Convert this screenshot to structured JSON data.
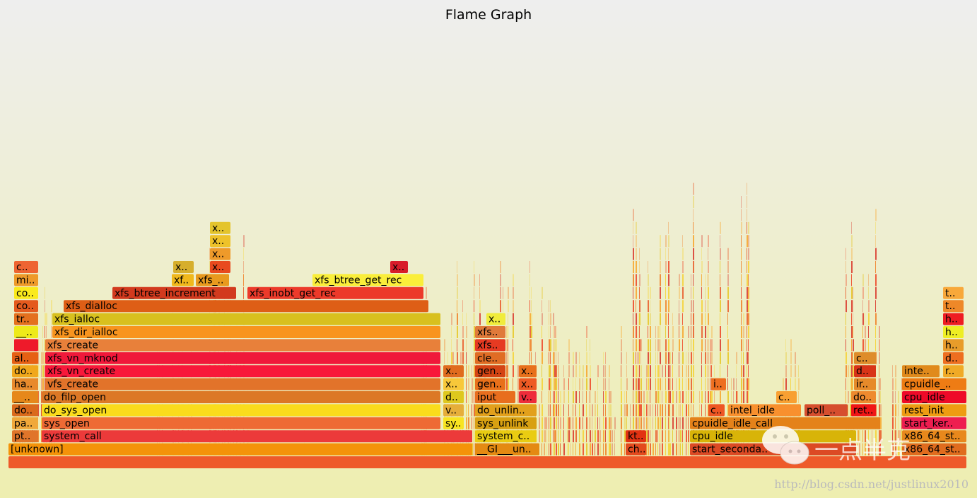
{
  "chart_data": {
    "type": "flamegraph",
    "title": "Flame Graph",
    "total_samples": 1356,
    "frames": [
      {
        "name": "",
        "depth": 0,
        "start": 0,
        "width": 1356,
        "color": "#ee5a2a"
      },
      {
        "name": "[unknown]",
        "depth": 1,
        "start": 0,
        "width": 657,
        "color": "#f49309"
      },
      {
        "name": "__GI___un..",
        "depth": 1,
        "start": 660,
        "width": 92,
        "color": "#e48a12"
      },
      {
        "name": "ch..",
        "depth": 1,
        "start": 873,
        "width": 30,
        "color": "#e34a1e"
      },
      {
        "name": "start_seconda..",
        "depth": 1,
        "start": 964,
        "width": 236,
        "color": "#dc4a24"
      },
      {
        "name": "x86_64_st..",
        "depth": 1,
        "start": 1264,
        "width": 92,
        "color": "#e06c1e"
      },
      {
        "name": "pt..",
        "depth": 2,
        "start": 5,
        "width": 38,
        "color": "#e0752a"
      },
      {
        "name": "system_call",
        "depth": 2,
        "start": 47,
        "width": 610,
        "color": "#ec3a3a"
      },
      {
        "name": "system_c..",
        "depth": 2,
        "start": 660,
        "width": 88,
        "color": "#e9cc12"
      },
      {
        "name": "kt..",
        "depth": 2,
        "start": 873,
        "width": 30,
        "color": "#e23212"
      },
      {
        "name": "cpu_idle",
        "depth": 2,
        "start": 964,
        "width": 236,
        "color": "#d8b408"
      },
      {
        "name": "x86_64_st..",
        "depth": 2,
        "start": 1264,
        "width": 92,
        "color": "#e8881c"
      },
      {
        "name": "pa..",
        "depth": 3,
        "start": 5,
        "width": 38,
        "color": "#f0a83a"
      },
      {
        "name": "sys_open",
        "depth": 3,
        "start": 47,
        "width": 565,
        "color": "#ee6a34"
      },
      {
        "name": "sy..",
        "depth": 3,
        "start": 615,
        "width": 30,
        "color": "#f8e420"
      },
      {
        "name": "sys_unlink",
        "depth": 3,
        "start": 660,
        "width": 88,
        "color": "#d8a012"
      },
      {
        "name": "cpuidle_idle_call",
        "depth": 3,
        "start": 964,
        "width": 270,
        "color": "#e4821a"
      },
      {
        "name": "start_ker..",
        "depth": 3,
        "start": 1264,
        "width": 92,
        "color": "#ee1e50"
      },
      {
        "name": "do..",
        "depth": 4,
        "start": 5,
        "width": 38,
        "color": "#da6a1c"
      },
      {
        "name": "do_sys_open",
        "depth": 4,
        "start": 47,
        "width": 565,
        "color": "#fadc1c"
      },
      {
        "name": "v..",
        "depth": 4,
        "start": 615,
        "width": 30,
        "color": "#e6ae3a"
      },
      {
        "name": "do_unlin..",
        "depth": 4,
        "start": 660,
        "width": 88,
        "color": "#e2a01c"
      },
      {
        "name": "c..",
        "depth": 4,
        "start": 990,
        "width": 24,
        "color": "#ee5624"
      },
      {
        "name": "intel_idle",
        "depth": 4,
        "start": 1018,
        "width": 104,
        "color": "#f8902e"
      },
      {
        "name": "poll_..",
        "depth": 4,
        "start": 1126,
        "width": 62,
        "color": "#d64e2e"
      },
      {
        "name": "ret..",
        "depth": 4,
        "start": 1192,
        "width": 36,
        "color": "#f01616"
      },
      {
        "name": "rest_init",
        "depth": 4,
        "start": 1264,
        "width": 92,
        "color": "#ee9c12"
      },
      {
        "name": "__..",
        "depth": 5,
        "start": 5,
        "width": 38,
        "color": "#e6881a"
      },
      {
        "name": "do_filp_open",
        "depth": 5,
        "start": 47,
        "width": 565,
        "color": "#dc7826"
      },
      {
        "name": "d..",
        "depth": 5,
        "start": 615,
        "width": 30,
        "color": "#dec81e"
      },
      {
        "name": "iput",
        "depth": 5,
        "start": 660,
        "width": 58,
        "color": "#e86e1e"
      },
      {
        "name": "v..",
        "depth": 5,
        "start": 722,
        "width": 26,
        "color": "#ee2c3a"
      },
      {
        "name": "c..",
        "depth": 5,
        "start": 1086,
        "width": 30,
        "color": "#f8a032"
      },
      {
        "name": "do..",
        "depth": 5,
        "start": 1192,
        "width": 36,
        "color": "#ee8a2e"
      },
      {
        "name": "cpu_idle",
        "depth": 5,
        "start": 1264,
        "width": 92,
        "color": "#ee0a28"
      },
      {
        "name": "ha..",
        "depth": 6,
        "start": 5,
        "width": 38,
        "color": "#e88a2c"
      },
      {
        "name": "vfs_create",
        "depth": 6,
        "start": 52,
        "width": 560,
        "color": "#e2732a"
      },
      {
        "name": "x..",
        "depth": 6,
        "start": 615,
        "width": 30,
        "color": "#f8c83a"
      },
      {
        "name": "gen..",
        "depth": 6,
        "start": 660,
        "width": 44,
        "color": "#e8701a"
      },
      {
        "name": "x..",
        "depth": 6,
        "start": 722,
        "width": 26,
        "color": "#ee5a24"
      },
      {
        "name": "i..",
        "depth": 6,
        "start": 994,
        "width": 22,
        "color": "#ee6e20"
      },
      {
        "name": "ir..",
        "depth": 6,
        "start": 1196,
        "width": 32,
        "color": "#e68a2a"
      },
      {
        "name": "cpuidle_..",
        "depth": 6,
        "start": 1264,
        "width": 92,
        "color": "#ee7c14"
      },
      {
        "name": "do..",
        "depth": 7,
        "start": 5,
        "width": 38,
        "color": "#f0a81c"
      },
      {
        "name": "xfs_vn_create",
        "depth": 7,
        "start": 52,
        "width": 560,
        "color": "#f8183a"
      },
      {
        "name": "x..",
        "depth": 7,
        "start": 615,
        "width": 30,
        "color": "#e06c1e"
      },
      {
        "name": "gen..",
        "depth": 7,
        "start": 660,
        "width": 44,
        "color": "#d44414"
      },
      {
        "name": "x..",
        "depth": 7,
        "start": 722,
        "width": 26,
        "color": "#e8701c"
      },
      {
        "name": "d..",
        "depth": 7,
        "start": 1196,
        "width": 32,
        "color": "#d83418"
      },
      {
        "name": "inte..",
        "depth": 7,
        "start": 1264,
        "width": 54,
        "color": "#e08a1c"
      },
      {
        "name": "r..",
        "depth": 7,
        "start": 1322,
        "width": 30,
        "color": "#f0aa26"
      },
      {
        "name": "al..",
        "depth": 8,
        "start": 5,
        "width": 38,
        "color": "#e66014"
      },
      {
        "name": "xfs_vn_mknod",
        "depth": 8,
        "start": 52,
        "width": 560,
        "color": "#f0183a"
      },
      {
        "name": "cle..",
        "depth": 8,
        "start": 660,
        "width": 44,
        "color": "#e06c24"
      },
      {
        "name": "c..",
        "depth": 8,
        "start": 1196,
        "width": 32,
        "color": "#de8c2a"
      },
      {
        "name": "d..",
        "depth": 8,
        "start": 1322,
        "width": 30,
        "color": "#ee6e20"
      },
      {
        "name": "xfs_create",
        "depth": 9,
        "start": 52,
        "width": 560,
        "color": "#e8803a"
      },
      {
        "name": "xfs..",
        "depth": 9,
        "start": 660,
        "width": 44,
        "color": "#e63a22"
      },
      {
        "name": "h..",
        "depth": 9,
        "start": 1322,
        "width": 30,
        "color": "#e89c2a"
      },
      {
        "name": "xfs_dir_ialloc",
        "depth": 10,
        "start": 62,
        "width": 550,
        "color": "#f8941e"
      },
      {
        "name": "xfs..",
        "depth": 10,
        "start": 660,
        "width": 44,
        "color": "#e07a3a"
      },
      {
        "name": "h..",
        "depth": 10,
        "start": 1322,
        "width": 30,
        "color": "#eeee24"
      },
      {
        "name": "xfs_ialloc",
        "depth": 11,
        "start": 62,
        "width": 550,
        "color": "#d8c01e"
      },
      {
        "name": "x..",
        "depth": 11,
        "start": 676,
        "width": 28,
        "color": "#f0ec3a"
      },
      {
        "name": "h..",
        "depth": 11,
        "start": 1322,
        "width": 30,
        "color": "#ee1c22"
      },
      {
        "name": "xfs_dialloc",
        "depth": 12,
        "start": 78,
        "width": 517,
        "color": "#de5e16"
      },
      {
        "name": "t..",
        "depth": 12,
        "start": 1322,
        "width": 30,
        "color": "#ee8828"
      },
      {
        "name": "xfs_btree_increment",
        "depth": 13,
        "start": 147,
        "width": 176,
        "color": "#d23a1e"
      },
      {
        "name": "xfs_inobt_get_rec",
        "depth": 13,
        "start": 338,
        "width": 250,
        "color": "#ec3a2a"
      },
      {
        "name": "t..",
        "depth": 13,
        "start": 1322,
        "width": 30,
        "color": "#f8a83a"
      },
      {
        "name": "xfs_btree_get_rec",
        "depth": 14,
        "start": 430,
        "width": 158,
        "color": "#faee3a"
      },
      {
        "name": "xf..",
        "depth": 14,
        "start": 231,
        "width": 32,
        "color": "#f0b81c"
      },
      {
        "name": "xfs_..",
        "depth": 14,
        "start": 265,
        "width": 48,
        "color": "#e89a1e"
      },
      {
        "name": "x..",
        "depth": 15,
        "start": 233,
        "width": 30,
        "color": "#d6ae2c"
      },
      {
        "name": "x..",
        "depth": 15,
        "start": 285,
        "width": 30,
        "color": "#e84a1e"
      },
      {
        "name": "x..",
        "depth": 15,
        "start": 540,
        "width": 26,
        "color": "#d81c2a"
      },
      {
        "name": "x..",
        "depth": 16,
        "start": 285,
        "width": 30,
        "color": "#ee9a2a"
      },
      {
        "name": "x..",
        "depth": 17,
        "start": 285,
        "width": 30,
        "color": "#eec22a"
      },
      {
        "name": "x..",
        "depth": 18,
        "start": 285,
        "width": 30,
        "color": "#e4c42c"
      },
      {
        "name": "co..",
        "depth": 13,
        "start": 8,
        "width": 35,
        "color": "#faea1c"
      },
      {
        "name": "co..",
        "depth": 12,
        "start": 8,
        "width": 35,
        "color": "#e45a1e"
      },
      {
        "name": "tr..",
        "depth": 11,
        "start": 8,
        "width": 35,
        "color": "#e4701e"
      },
      {
        "name": "__..",
        "depth": 10,
        "start": 8,
        "width": 35,
        "color": "#eeea1a"
      },
      {
        "name": "mi..",
        "depth": 14,
        "start": 8,
        "width": 35,
        "color": "#ee9a2a"
      },
      {
        "name": "c..",
        "depth": 15,
        "start": 8,
        "width": 35,
        "color": "#ee6432"
      },
      {
        "name": "",
        "depth": 9,
        "start": 8,
        "width": 35,
        "color": "#ee1a2a"
      }
    ],
    "watermark": {
      "chinese": "一点半克",
      "url": "http://blog.csdn.net/justlinux2010"
    }
  }
}
